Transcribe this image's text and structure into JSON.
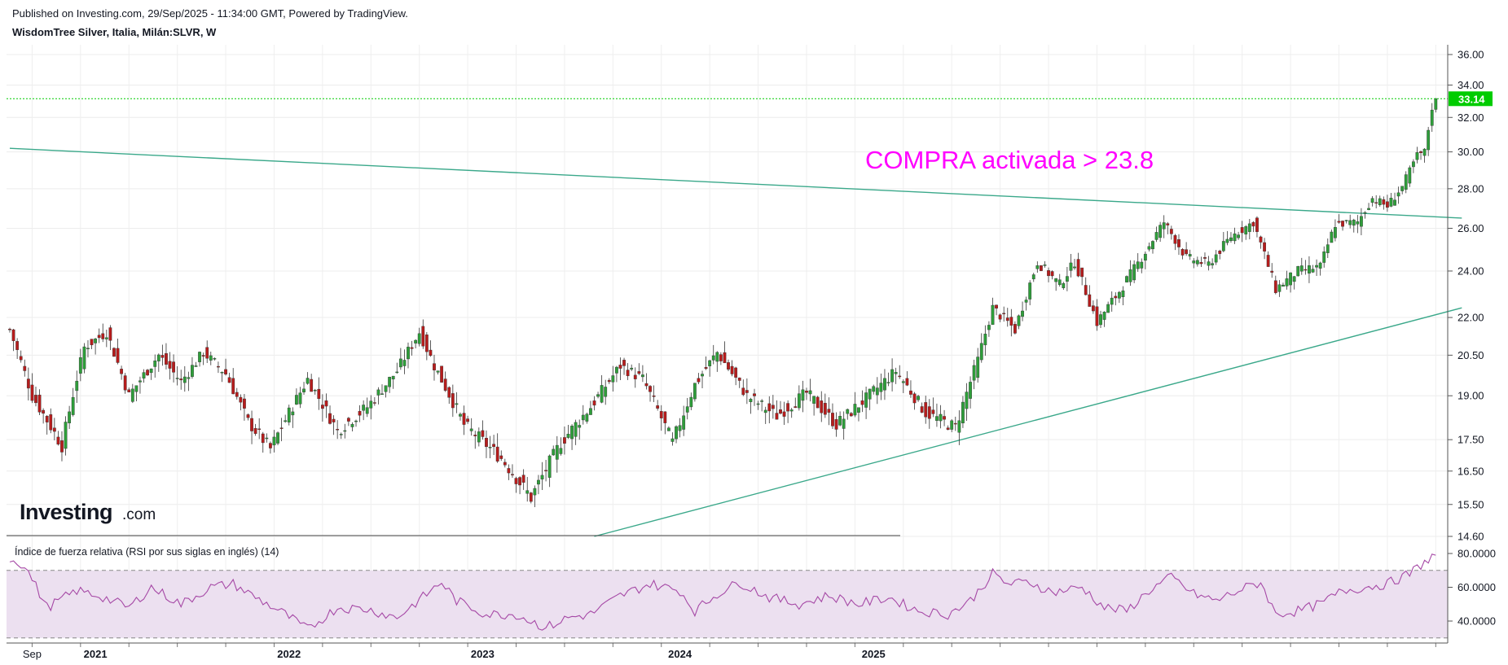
{
  "header": {
    "published": "Published on Investing.com, 29/Sep/2025 - 11:34:00 GMT, Powered by TradingView.",
    "instrument": "WisdomTree Silver, Italia, Milán:SLVR, W"
  },
  "logo": {
    "text": "Investing",
    "suffix": ".com"
  },
  "annotation": "COMPRA activada > 23.8",
  "colors": {
    "up": "#2e9e3a",
    "down": "#b71c1c",
    "trendline": "#3aa88a",
    "annotation": "#ff00ff",
    "last_price": "#00cc00",
    "rsi": "#a649a6",
    "rsi_band": "#ece0f0"
  },
  "chart_data": [
    {
      "type": "candlestick",
      "title": "WisdomTree Silver, Italia, Milán:SLVR, W",
      "ylim": [
        14.6,
        36.0
      ],
      "y_ticks": [
        "36.00",
        "34.00",
        "32.00",
        "30.00",
        "28.00",
        "26.00",
        "24.00",
        "22.00",
        "20.50",
        "19.00",
        "17.50",
        "16.50",
        "15.50",
        "14.60"
      ],
      "x_ticks": [
        "Sep",
        "2021",
        "2022",
        "2023",
        "2024",
        "2025"
      ],
      "last_price": "33.14",
      "close_anchors": [
        {
          "week": 0,
          "close": 21.5
        },
        {
          "week": 6,
          "close": 19.0
        },
        {
          "week": 14,
          "close": 17.3
        },
        {
          "week": 20,
          "close": 20.8
        },
        {
          "week": 26,
          "close": 21.4
        },
        {
          "week": 32,
          "close": 19.0
        },
        {
          "week": 40,
          "close": 20.5
        },
        {
          "week": 46,
          "close": 19.5
        },
        {
          "week": 52,
          "close": 20.6
        },
        {
          "week": 58,
          "close": 19.8
        },
        {
          "week": 64,
          "close": 18.1
        },
        {
          "week": 70,
          "close": 17.2
        },
        {
          "week": 80,
          "close": 19.6
        },
        {
          "week": 88,
          "close": 17.8
        },
        {
          "week": 96,
          "close": 18.6
        },
        {
          "week": 104,
          "close": 19.9
        },
        {
          "week": 110,
          "close": 21.4
        },
        {
          "week": 114,
          "close": 20.1
        },
        {
          "week": 122,
          "close": 18.0
        },
        {
          "week": 132,
          "close": 16.9
        },
        {
          "week": 140,
          "close": 15.7
        },
        {
          "week": 148,
          "close": 17.4
        },
        {
          "week": 156,
          "close": 18.6
        },
        {
          "week": 164,
          "close": 20.1
        },
        {
          "week": 170,
          "close": 19.6
        },
        {
          "week": 178,
          "close": 17.4
        },
        {
          "week": 184,
          "close": 19.4
        },
        {
          "week": 190,
          "close": 20.6
        },
        {
          "week": 198,
          "close": 19.0
        },
        {
          "week": 206,
          "close": 18.3
        },
        {
          "week": 214,
          "close": 19.1
        },
        {
          "week": 222,
          "close": 18.0
        },
        {
          "week": 230,
          "close": 18.9
        },
        {
          "week": 238,
          "close": 19.9
        },
        {
          "week": 246,
          "close": 18.4
        },
        {
          "week": 254,
          "close": 17.9
        },
        {
          "week": 260,
          "close": 20.3
        },
        {
          "week": 264,
          "close": 22.4
        },
        {
          "week": 270,
          "close": 21.5
        },
        {
          "week": 276,
          "close": 24.4
        },
        {
          "week": 282,
          "close": 23.4
        },
        {
          "week": 286,
          "close": 24.4
        },
        {
          "week": 292,
          "close": 21.8
        },
        {
          "week": 298,
          "close": 23.1
        },
        {
          "week": 304,
          "close": 24.6
        },
        {
          "week": 310,
          "close": 26.3
        },
        {
          "week": 316,
          "close": 24.6
        },
        {
          "week": 322,
          "close": 24.3
        },
        {
          "week": 328,
          "close": 25.6
        },
        {
          "week": 334,
          "close": 26.3
        },
        {
          "week": 340,
          "close": 23.2
        },
        {
          "week": 346,
          "close": 24.0
        },
        {
          "week": 352,
          "close": 24.2
        },
        {
          "week": 356,
          "close": 26.2
        },
        {
          "week": 362,
          "close": 26.3
        },
        {
          "week": 366,
          "close": 27.5
        },
        {
          "week": 370,
          "close": 27.1
        },
        {
          "week": 374,
          "close": 28.1
        },
        {
          "week": 378,
          "close": 29.8
        },
        {
          "week": 380,
          "close": 30.0
        },
        {
          "week": 382,
          "close": 32.6
        },
        {
          "week": 383,
          "close": 33.14
        }
      ],
      "trendlines": [
        {
          "name": "resistance",
          "from": {
            "week": 0,
            "close": 30.2
          },
          "to": {
            "week": 390,
            "close": 26.5
          }
        },
        {
          "name": "support",
          "from": {
            "week": 157,
            "close": 14.6
          },
          "to": {
            "week": 390,
            "close": 22.4
          }
        }
      ]
    },
    {
      "type": "line",
      "title": "Índice de fuerza relativa (RSI por sus siglas en inglés) (14)",
      "ylim": [
        25,
        85
      ],
      "y_ticks": [
        "80.0000",
        "60.0000",
        "40.0000"
      ],
      "bands": [
        70,
        30
      ],
      "points": [
        {
          "week": 0,
          "value": 77
        },
        {
          "week": 4,
          "value": 73
        },
        {
          "week": 10,
          "value": 48
        },
        {
          "week": 18,
          "value": 58
        },
        {
          "week": 24,
          "value": 55
        },
        {
          "week": 32,
          "value": 48
        },
        {
          "week": 38,
          "value": 60
        },
        {
          "week": 46,
          "value": 50
        },
        {
          "week": 54,
          "value": 60
        },
        {
          "week": 60,
          "value": 62
        },
        {
          "week": 66,
          "value": 54
        },
        {
          "week": 74,
          "value": 44
        },
        {
          "week": 80,
          "value": 35
        },
        {
          "week": 88,
          "value": 48
        },
        {
          "week": 96,
          "value": 47
        },
        {
          "week": 104,
          "value": 42
        },
        {
          "week": 112,
          "value": 56
        },
        {
          "week": 116,
          "value": 63
        },
        {
          "week": 120,
          "value": 52
        },
        {
          "week": 128,
          "value": 44
        },
        {
          "week": 136,
          "value": 44
        },
        {
          "week": 144,
          "value": 36
        },
        {
          "week": 150,
          "value": 42
        },
        {
          "week": 156,
          "value": 44
        },
        {
          "week": 164,
          "value": 55
        },
        {
          "week": 172,
          "value": 62
        },
        {
          "week": 180,
          "value": 58
        },
        {
          "week": 184,
          "value": 46
        },
        {
          "week": 190,
          "value": 56
        },
        {
          "week": 196,
          "value": 63
        },
        {
          "week": 204,
          "value": 54
        },
        {
          "week": 212,
          "value": 50
        },
        {
          "week": 220,
          "value": 55
        },
        {
          "week": 228,
          "value": 50
        },
        {
          "week": 236,
          "value": 54
        },
        {
          "week": 244,
          "value": 46
        },
        {
          "week": 252,
          "value": 44
        },
        {
          "week": 258,
          "value": 52
        },
        {
          "week": 264,
          "value": 68
        },
        {
          "week": 268,
          "value": 62
        },
        {
          "week": 274,
          "value": 63
        },
        {
          "week": 280,
          "value": 57
        },
        {
          "week": 288,
          "value": 60
        },
        {
          "week": 294,
          "value": 48
        },
        {
          "week": 300,
          "value": 46
        },
        {
          "week": 306,
          "value": 58
        },
        {
          "week": 312,
          "value": 66
        },
        {
          "week": 318,
          "value": 56
        },
        {
          "week": 324,
          "value": 52
        },
        {
          "week": 330,
          "value": 58
        },
        {
          "week": 336,
          "value": 63
        },
        {
          "week": 340,
          "value": 44
        },
        {
          "week": 346,
          "value": 46
        },
        {
          "week": 352,
          "value": 50
        },
        {
          "week": 358,
          "value": 58
        },
        {
          "week": 364,
          "value": 60
        },
        {
          "week": 370,
          "value": 62
        },
        {
          "week": 376,
          "value": 68
        },
        {
          "week": 380,
          "value": 75
        },
        {
          "week": 383,
          "value": 79
        }
      ]
    }
  ]
}
